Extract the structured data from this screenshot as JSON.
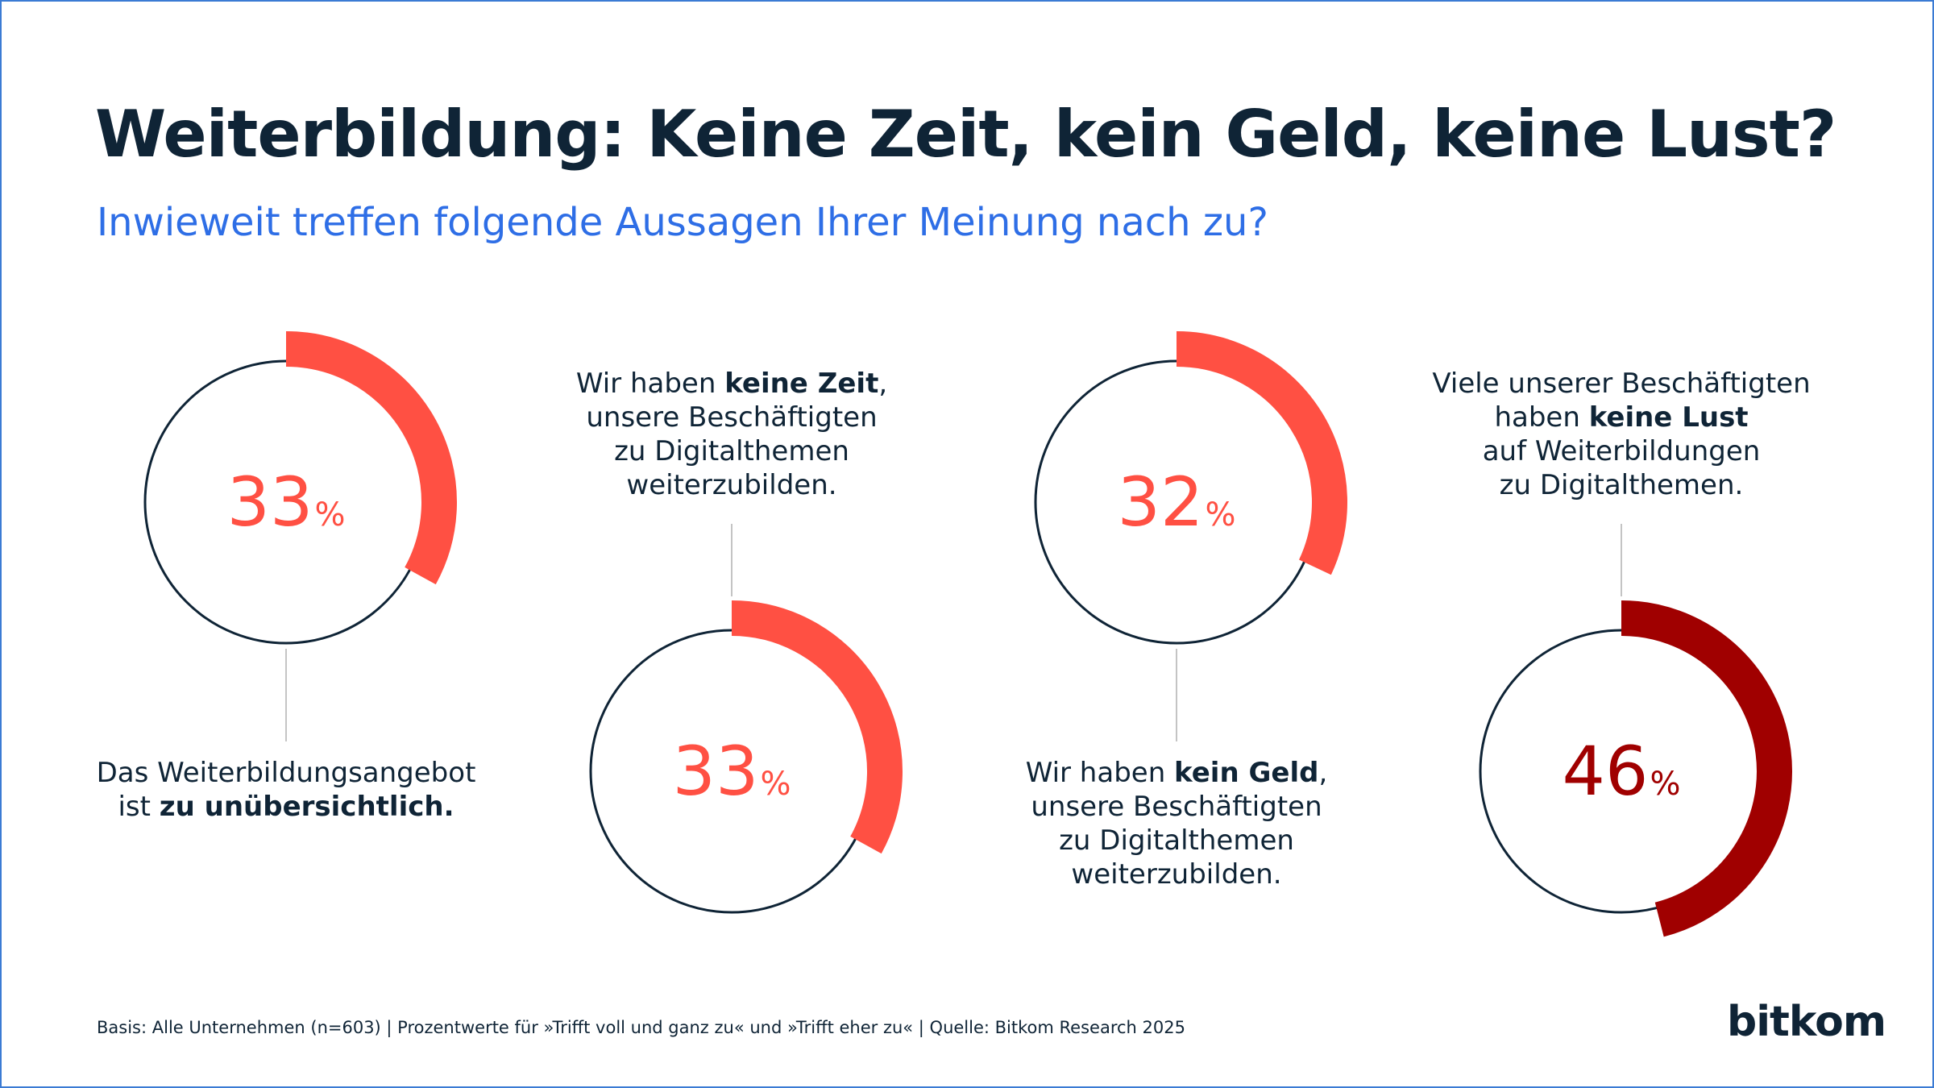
{
  "title": "Weiterbildung: Keine Zeit, kein Geld, keine Lust?",
  "subtitle": "Inwieweit treffen folgende Aussagen Ihrer Meinung nach zu?",
  "footnote": "Basis: Alle Unternehmen (n=603) | Prozentwerte für »Trifft voll und ganz zu« und  »Trifft eher zu« | Quelle: Bitkom Research 2025",
  "logo": "bitkom",
  "colors": {
    "accent": "#ff5043",
    "highlight": "#a00000",
    "ring": "#0f2436",
    "connector": "#c4c4c4"
  },
  "chart_data": {
    "type": "donut",
    "unit": "%",
    "items": [
      {
        "value": 33,
        "unit": "%",
        "color": "#ff5043",
        "label_parts": [
          {
            "text": "Das Weiterbildungsangebot",
            "bold": false,
            "br": true
          },
          {
            "text": "ist ",
            "bold": false
          },
          {
            "text": "zu unübersichtlich.",
            "bold": true
          }
        ]
      },
      {
        "value": 33,
        "unit": "%",
        "color": "#ff5043",
        "label_parts": [
          {
            "text": "Wir haben ",
            "bold": false
          },
          {
            "text": "keine Zeit",
            "bold": true
          },
          {
            "text": ",",
            "bold": false,
            "br": true
          },
          {
            "text": "unsere Beschäftigten",
            "bold": false,
            "br": true
          },
          {
            "text": "zu Digitalthemen",
            "bold": false,
            "br": true
          },
          {
            "text": "weiterzubilden.",
            "bold": false
          }
        ]
      },
      {
        "value": 32,
        "unit": "%",
        "color": "#ff5043",
        "label_parts": [
          {
            "text": "Wir haben ",
            "bold": false
          },
          {
            "text": "kein Geld",
            "bold": true
          },
          {
            "text": ",",
            "bold": false,
            "br": true
          },
          {
            "text": "unsere Beschäftigten",
            "bold": false,
            "br": true
          },
          {
            "text": "zu Digitalthemen",
            "bold": false,
            "br": true
          },
          {
            "text": "weiterzubilden.",
            "bold": false
          }
        ]
      },
      {
        "value": 46,
        "unit": "%",
        "color": "#a00000",
        "label_parts": [
          {
            "text": "Viele unserer Beschäftigten",
            "bold": false,
            "br": true
          },
          {
            "text": "haben ",
            "bold": false
          },
          {
            "text": "keine Lust",
            "bold": true,
            "br": true
          },
          {
            "text": "auf Weiterbildungen",
            "bold": false,
            "br": true
          },
          {
            "text": "zu Digitalthemen.",
            "bold": false
          }
        ]
      }
    ]
  }
}
